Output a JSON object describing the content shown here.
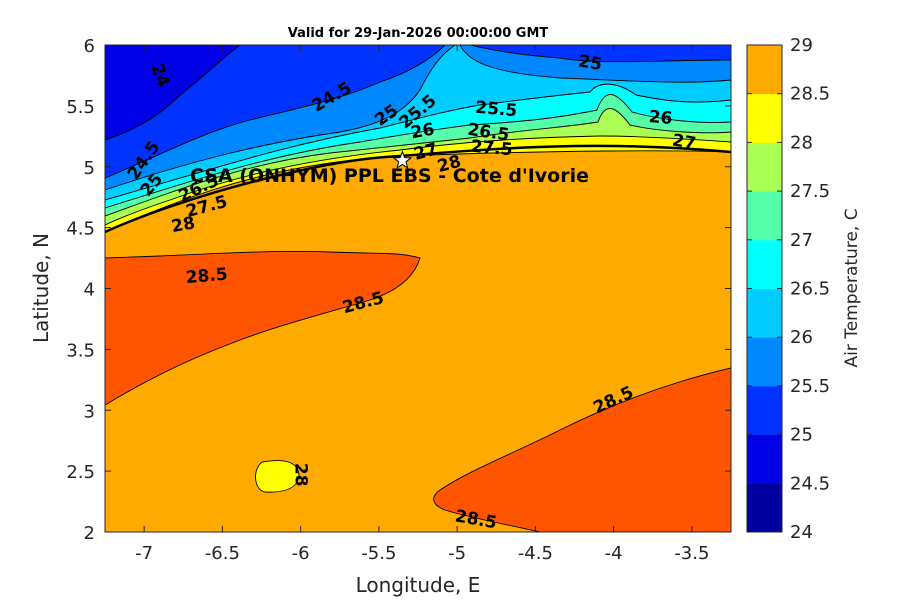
{
  "chart_data": {
    "type": "heatmap",
    "subtype": "filled-contour",
    "title": "Valid for 29-Jan-2026 00:00:00 GMT",
    "xlabel": "Longitude, E",
    "ylabel": "Latitude, N",
    "xlim": [
      -7.25,
      -3.25
    ],
    "ylim": [
      2,
      6
    ],
    "xticks": [
      -7,
      -6.5,
      -6,
      -5.5,
      -5,
      -4.5,
      -4,
      -3.5
    ],
    "yticks": [
      2,
      2.5,
      3,
      3.5,
      4,
      4.5,
      5,
      5.5,
      6
    ],
    "colorbar": {
      "label": "Air Temperature, C",
      "levels": [
        24,
        24.5,
        25,
        25.5,
        26,
        26.5,
        27,
        27.5,
        28,
        28.5,
        29
      ],
      "colors": [
        "#00009f",
        "#0000e6",
        "#0033ff",
        "#0088ff",
        "#00ccff",
        "#00ffff",
        "#55ffaa",
        "#aaff55",
        "#ffff00",
        "#ffaa00",
        "#ff5500",
        "#ff0000"
      ]
    },
    "site": {
      "label": "CSA (ONHYM) PPL EBS - Cote d'Ivorie",
      "lon": -5.35,
      "lat": 5.05
    },
    "contour_labels": [
      {
        "text": "24",
        "lon": -6.9,
        "lat": 5.75,
        "angle": 70
      },
      {
        "text": "24.5",
        "lon": -5.8,
        "lat": 5.57,
        "angle": -30
      },
      {
        "text": "25",
        "lon": -5.45,
        "lat": 5.42,
        "angle": -35
      },
      {
        "text": "25.5",
        "lon": -5.25,
        "lat": 5.45,
        "angle": -40
      },
      {
        "text": "26",
        "lon": -5.22,
        "lat": 5.29,
        "angle": -10
      },
      {
        "text": "27",
        "lon": -5.2,
        "lat": 5.12,
        "angle": -15
      },
      {
        "text": "28",
        "lon": -5.05,
        "lat": 5.02,
        "angle": -15
      },
      {
        "text": "25.5",
        "lon": -4.75,
        "lat": 5.47,
        "angle": 5
      },
      {
        "text": "26.5",
        "lon": -4.8,
        "lat": 5.28,
        "angle": 8
      },
      {
        "text": "27.5",
        "lon": -4.78,
        "lat": 5.15,
        "angle": 5
      },
      {
        "text": "25",
        "lon": -4.15,
        "lat": 5.85,
        "angle": 10
      },
      {
        "text": "26",
        "lon": -3.7,
        "lat": 5.4,
        "angle": 5
      },
      {
        "text": "27",
        "lon": -3.55,
        "lat": 5.2,
        "angle": 10
      },
      {
        "text": "24.5",
        "lon": -7.0,
        "lat": 5.05,
        "angle": -55
      },
      {
        "text": "25",
        "lon": -6.95,
        "lat": 4.85,
        "angle": -50
      },
      {
        "text": "26.5",
        "lon": -6.65,
        "lat": 4.82,
        "angle": -25
      },
      {
        "text": "27.5",
        "lon": -6.6,
        "lat": 4.67,
        "angle": -15
      },
      {
        "text": "28",
        "lon": -6.75,
        "lat": 4.52,
        "angle": -10
      },
      {
        "text": "28.5",
        "lon": -6.6,
        "lat": 4.1,
        "angle": -5
      },
      {
        "text": "28.5",
        "lon": -5.6,
        "lat": 3.88,
        "angle": -15
      },
      {
        "text": "28",
        "lon": -6.0,
        "lat": 2.47,
        "angle": 90
      },
      {
        "text": "28.5",
        "lon": -4.0,
        "lat": 3.08,
        "angle": -25
      },
      {
        "text": "28.5",
        "lon": -4.88,
        "lat": 2.1,
        "angle": 10
      }
    ]
  }
}
